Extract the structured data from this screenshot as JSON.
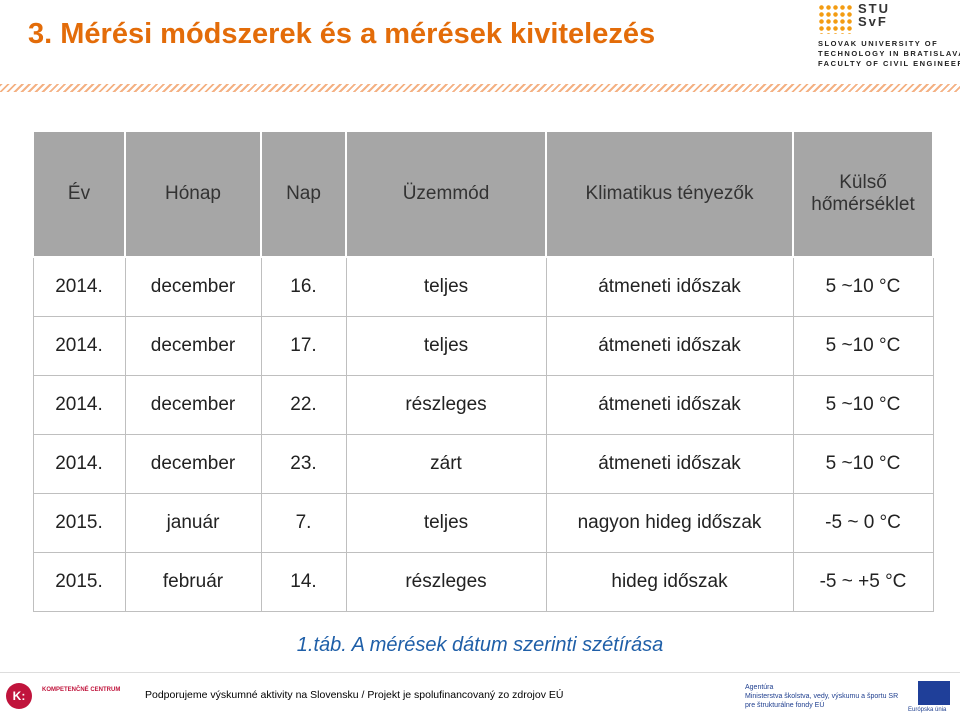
{
  "header": {
    "title": "3. Mérési módszerek és a mérések kivitelezés",
    "logo_mark": [
      "STU",
      "SvF"
    ],
    "logo_lines": [
      "SLOVAK UNIVERSITY OF",
      "TECHNOLOGY IN BRATISLAVA",
      "FACULTY OF CIVIL ENGINEERING"
    ]
  },
  "table": {
    "columns": [
      "Év",
      "Hónap",
      "Nap",
      "Üzemmód",
      "Klimatikus tényezők",
      "Külső hőmérséklet"
    ],
    "rows": [
      [
        "2014.",
        "december",
        "16.",
        "teljes",
        "átmeneti időszak",
        "5 ~10 °C"
      ],
      [
        "2014.",
        "december",
        "17.",
        "teljes",
        "átmeneti időszak",
        "5 ~10 °C"
      ],
      [
        "2014.",
        "december",
        "22.",
        "részleges",
        "átmeneti időszak",
        "5 ~10 °C"
      ],
      [
        "2014.",
        "december",
        "23.",
        "zárt",
        "átmeneti időszak",
        "5 ~10 °C"
      ],
      [
        "2015.",
        "január",
        "7.",
        "teljes",
        "nagyon hideg időszak",
        "-5 ~ 0 °C"
      ],
      [
        "2015.",
        "február",
        "14.",
        "részleges",
        "hideg időszak",
        "-5 ~ +5 °C"
      ]
    ]
  },
  "caption": "1.táb. A mérések dátum szerinti szétírása",
  "footer": {
    "left_logo": "K:",
    "left_name": "KOMPETENČNÉ CENTRUM",
    "text": "Podporujeme výskumné aktivity na Slovensku / Projekt je spolufinancovaný zo zdrojov EÚ",
    "agency": [
      "Agentúra",
      "Ministerstva školstva, vedy, výskumu a športu SR",
      "pre štrukturálne fondy EÚ"
    ],
    "eu": "Európska únia"
  }
}
